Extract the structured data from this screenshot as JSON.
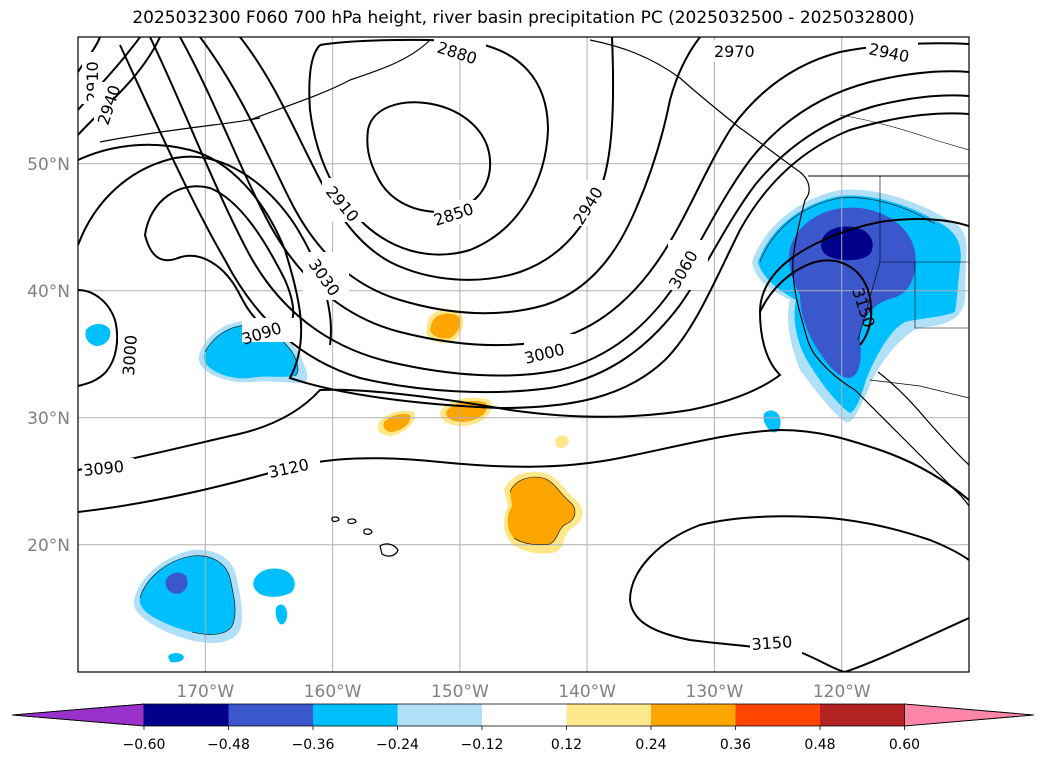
{
  "title": "2025032300 F060 700 hPa height, river basin precipitation PC (2025032500 - 2025032800)",
  "map": {
    "lon_range": [
      -180,
      -110
    ],
    "lat_range": [
      10,
      60
    ],
    "lat_labels": [
      "50°N",
      "40°N",
      "30°N",
      "20°N"
    ],
    "lon_labels": [
      "170°W",
      "160°W",
      "150°W",
      "140°W",
      "130°W",
      "120°W"
    ],
    "contour_labels": [
      "2910",
      "2940",
      "2880",
      "2970",
      "2940",
      "2910",
      "2850",
      "2940",
      "3030",
      "3060",
      "3150",
      "3090",
      "3000",
      "3000",
      "3090",
      "3120",
      "3150"
    ],
    "gridline_color": "#b0b0b0"
  },
  "colorbar": {
    "tick_labels": [
      "−0.60",
      "−0.48",
      "−0.36",
      "−0.24",
      "−0.12",
      "0.12",
      "0.24",
      "0.36",
      "0.48",
      "0.60"
    ],
    "colors": [
      "#9932cc",
      "#00008b",
      "#3a57cc",
      "#00bfff",
      "#b0e0f8",
      "#ffffff",
      "#ffe88c",
      "#ffa500",
      "#ff4500",
      "#b22222",
      "#ff86a8"
    ]
  }
}
